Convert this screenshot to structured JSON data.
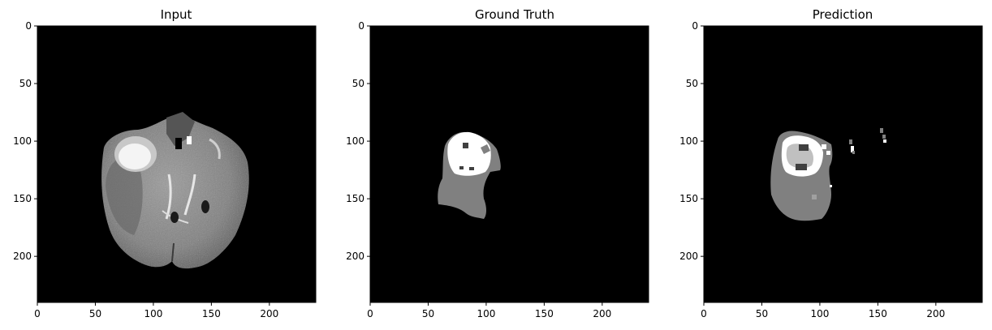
{
  "figure": {
    "panels": [
      {
        "title": "Input",
        "kind": "mri-slice",
        "xticks": [
          "0",
          "50",
          "100",
          "150",
          "200"
        ],
        "yticks": [
          "0",
          "50",
          "100",
          "150",
          "200"
        ]
      },
      {
        "title": "Ground Truth",
        "kind": "segmentation-mask",
        "xticks": [
          "0",
          "50",
          "100",
          "150",
          "200"
        ],
        "yticks": [
          "0",
          "50",
          "100",
          "150",
          "200"
        ]
      },
      {
        "title": "Prediction",
        "kind": "segmentation-mask",
        "xticks": [
          "0",
          "50",
          "100",
          "150",
          "200"
        ],
        "yticks": [
          "0",
          "50",
          "100",
          "150",
          "200"
        ]
      }
    ],
    "axis_range": [
      0,
      240
    ],
    "tick_values": [
      0,
      50,
      100,
      150,
      200
    ],
    "colors": {
      "background": "#000000",
      "brain_tissue": "#8a8a8a",
      "mask_gray": "#808080",
      "mask_white": "#ffffff",
      "mask_dark": "#404040"
    }
  }
}
